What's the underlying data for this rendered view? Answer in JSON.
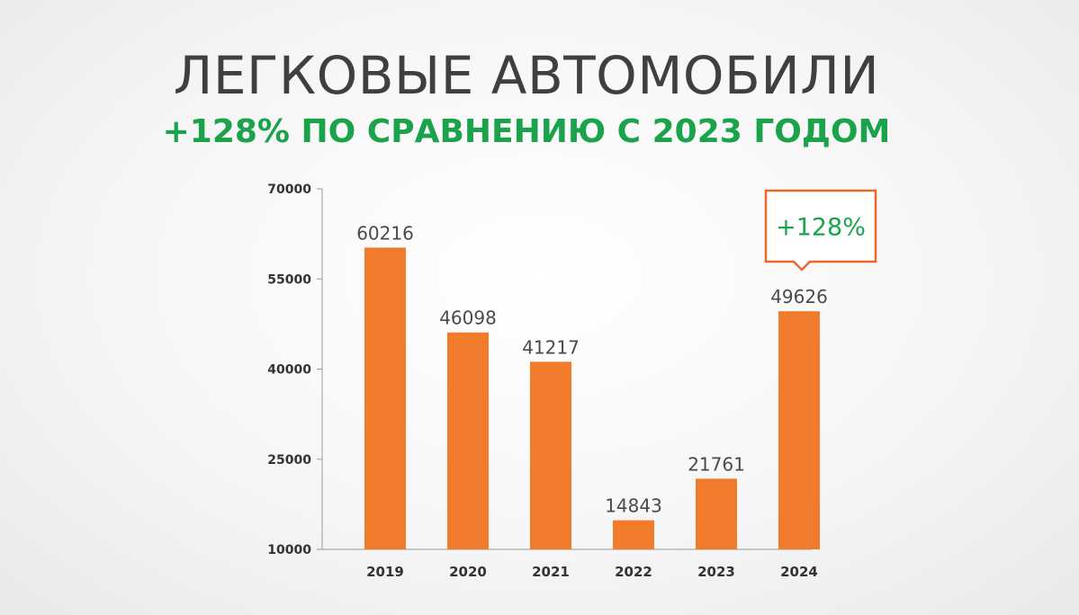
{
  "title": "ЛЕГКОВЫЕ АВТОМОБИЛИ",
  "subtitle": "+128% ПО СРАВНЕНИЮ С 2023 ГОДОМ",
  "callout": "+128%",
  "colors": {
    "bar": "#f07b2a",
    "accent_green": "#1aa34a",
    "callout_border": "#e8692a",
    "text": "#3f3f3f"
  },
  "chart_data": {
    "type": "bar",
    "categories": [
      "2019",
      "2020",
      "2021",
      "2022",
      "2023",
      "2024"
    ],
    "values": [
      60216,
      46098,
      41217,
      14843,
      21761,
      49626
    ],
    "data_labels": [
      "60216",
      "46098",
      "41217",
      "14843",
      "21761",
      "49626"
    ],
    "y_ticks": [
      "10000",
      "25000",
      "40000",
      "55000",
      "70000"
    ],
    "ylim": [
      10000,
      70000
    ],
    "xlabel": "",
    "ylabel": "",
    "grid": false,
    "legend": "none"
  }
}
